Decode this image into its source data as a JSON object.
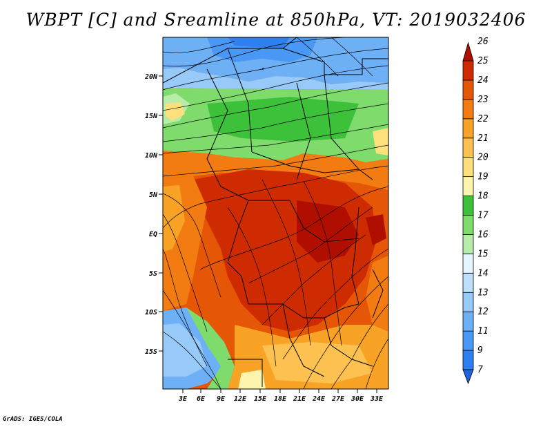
{
  "title": "WBPT [C] and Sreamline at 850hPa, VT: 2019032406",
  "credit": "GrADS: IGES/COLA",
  "map": {
    "lat_ticks": [
      "20N",
      "15N",
      "10N",
      "5N",
      "EQ",
      "5S",
      "10S",
      "15S"
    ],
    "lon_ticks": [
      "3E",
      "6E",
      "9E",
      "12E",
      "15E",
      "18E",
      "21E",
      "24E",
      "27E",
      "30E",
      "33E"
    ]
  },
  "colorbar": {
    "levels": [
      "7",
      "9",
      "11",
      "12",
      "13",
      "14",
      "15",
      "16",
      "17",
      "18",
      "19",
      "20",
      "21",
      "22",
      "23",
      "24",
      "25",
      "26"
    ],
    "colors": [
      "#1f64dc",
      "#2e7ff0",
      "#4a98f5",
      "#6eb0f6",
      "#97c9f9",
      "#bfe0fc",
      "#e6f6ff",
      "#b7eca9",
      "#7edb6c",
      "#3ec13a",
      "#fdf4ae",
      "#fde07c",
      "#fcc150",
      "#f8a226",
      "#f27c11",
      "#e55607",
      "#cf2b03",
      "#b00f00"
    ]
  }
}
